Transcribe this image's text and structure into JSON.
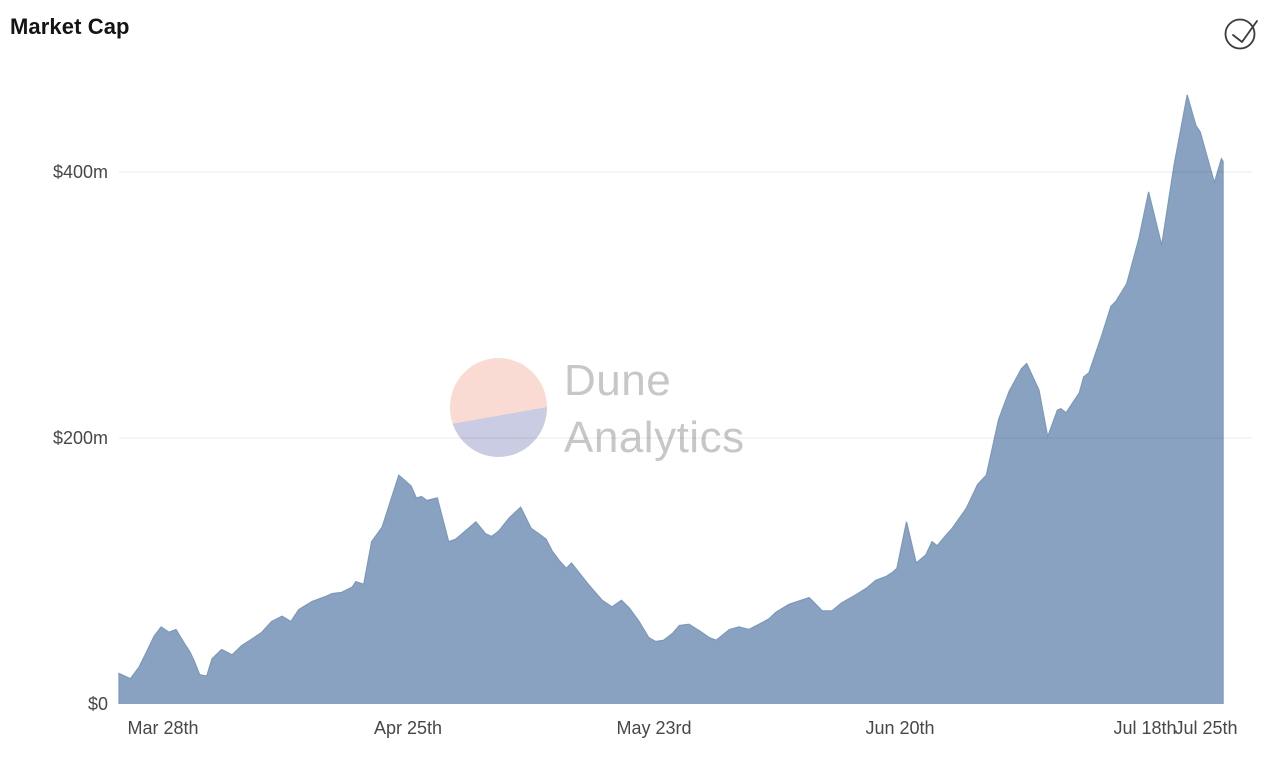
{
  "header": {
    "title": "Market Cap"
  },
  "watermark": {
    "line1": "Dune",
    "line2": "Analytics",
    "circle_top_color": "#fadbd4",
    "circle_bottom_color": "#c9cce2",
    "text_color": "#c7c7c7"
  },
  "chart_data": {
    "type": "area",
    "title": "Market Cap",
    "xlabel": "",
    "ylabel": "",
    "y_unit": "USD millions",
    "ylim": [
      0,
      485
    ],
    "x_domain_days": [
      0,
      126
    ],
    "grid": true,
    "legend_position": "none",
    "y_ticks": [
      {
        "label": "$0",
        "value": 0
      },
      {
        "label": "$200m",
        "value": 200
      },
      {
        "label": "$400m",
        "value": 400
      }
    ],
    "x_ticks": [
      {
        "label": "Mar 28th",
        "day": 5
      },
      {
        "label": "Apr 25th",
        "day": 33
      },
      {
        "label": "May 23rd",
        "day": 61
      },
      {
        "label": "Jun 20th",
        "day": 89
      },
      {
        "label": "Jul 18th",
        "day": 117
      },
      {
        "label": "Jul 25th",
        "day": 124
      }
    ],
    "colors": {
      "area_fill": "#89a2c1",
      "area_stroke": "#7d98ba",
      "grid_line": "rgba(0,0,0,0.08)",
      "tick_text": "#474747",
      "icon": "#3a3a3a"
    },
    "series": [
      {
        "name": "Market Cap ($m)",
        "points": [
          [
            0,
            23
          ],
          [
            1.3,
            19
          ],
          [
            2.3,
            28
          ],
          [
            3.2,
            40
          ],
          [
            4,
            51
          ],
          [
            4.8,
            58
          ],
          [
            5.7,
            54
          ],
          [
            6.5,
            56
          ],
          [
            7.6,
            44
          ],
          [
            8.1,
            39
          ],
          [
            8.6,
            32
          ],
          [
            9.2,
            22
          ],
          [
            10,
            21
          ],
          [
            10.6,
            34
          ],
          [
            11.7,
            41
          ],
          [
            12.9,
            37
          ],
          [
            14,
            44
          ],
          [
            15.2,
            49
          ],
          [
            16.3,
            54
          ],
          [
            17.4,
            62
          ],
          [
            18.6,
            66
          ],
          [
            19.6,
            62
          ],
          [
            20.5,
            71
          ],
          [
            22,
            77
          ],
          [
            23.6,
            81
          ],
          [
            24.3,
            83
          ],
          [
            25.4,
            84
          ],
          [
            26.6,
            88
          ],
          [
            27,
            92
          ],
          [
            27.9,
            90
          ],
          [
            28.8,
            122
          ],
          [
            30,
            133
          ],
          [
            31.9,
            172
          ],
          [
            33.3,
            164
          ],
          [
            33.9,
            155
          ],
          [
            34.5,
            156
          ],
          [
            35.1,
            153
          ],
          [
            36.3,
            155
          ],
          [
            37.6,
            122
          ],
          [
            38.4,
            124
          ],
          [
            40.7,
            137
          ],
          [
            41.8,
            128
          ],
          [
            42.5,
            126
          ],
          [
            43.3,
            130
          ],
          [
            44.5,
            140
          ],
          [
            45.8,
            148
          ],
          [
            47,
            132
          ],
          [
            47.9,
            128
          ],
          [
            48.7,
            124
          ],
          [
            49.4,
            115
          ],
          [
            50.2,
            108
          ],
          [
            51,
            102
          ],
          [
            51.6,
            106
          ],
          [
            53.4,
            91
          ],
          [
            53.9,
            87
          ],
          [
            55.1,
            78
          ],
          [
            56.2,
            73
          ],
          [
            57.3,
            78
          ],
          [
            58.2,
            72
          ],
          [
            59.3,
            62
          ],
          [
            60.4,
            50
          ],
          [
            61.2,
            47
          ],
          [
            62.1,
            48
          ],
          [
            63.1,
            53
          ],
          [
            63.9,
            59
          ],
          [
            65,
            60
          ],
          [
            66.2,
            55
          ],
          [
            67.3,
            50
          ],
          [
            68.1,
            48
          ],
          [
            69.6,
            56
          ],
          [
            70.7,
            58
          ],
          [
            71.8,
            56
          ],
          [
            73,
            60
          ],
          [
            74.1,
            64
          ],
          [
            74.9,
            69
          ],
          [
            76.4,
            75
          ],
          [
            78.7,
            80
          ],
          [
            80.2,
            70
          ],
          [
            81.3,
            70
          ],
          [
            82.4,
            76
          ],
          [
            84,
            82
          ],
          [
            85.2,
            87
          ],
          [
            86.3,
            93
          ],
          [
            87.5,
            96
          ],
          [
            88.2,
            99
          ],
          [
            88.7,
            102
          ],
          [
            89.8,
            137
          ],
          [
            90.9,
            106
          ],
          [
            92,
            112
          ],
          [
            92.7,
            122
          ],
          [
            93.3,
            119
          ],
          [
            94.3,
            127
          ],
          [
            95,
            132
          ],
          [
            96.6,
            147
          ],
          [
            97.9,
            165
          ],
          [
            98.9,
            172
          ],
          [
            99.5,
            190
          ],
          [
            100.3,
            214
          ],
          [
            101.5,
            235
          ],
          [
            102.9,
            252
          ],
          [
            103.5,
            256
          ],
          [
            104.9,
            236
          ],
          [
            105.9,
            201
          ],
          [
            107,
            221
          ],
          [
            107.4,
            222
          ],
          [
            108,
            219
          ],
          [
            109.5,
            234
          ],
          [
            110,
            246
          ],
          [
            110.6,
            249
          ],
          [
            112.1,
            278
          ],
          [
            113.1,
            299
          ],
          [
            113.7,
            303
          ],
          [
            114.9,
            316
          ],
          [
            116.3,
            350
          ],
          [
            117.4,
            385
          ],
          [
            118.9,
            345
          ],
          [
            120.3,
            405
          ],
          [
            121.8,
            458
          ],
          [
            122.8,
            435
          ],
          [
            123.3,
            430
          ],
          [
            124.9,
            392
          ],
          [
            125.7,
            410
          ],
          [
            125.9,
            408
          ]
        ]
      }
    ]
  }
}
